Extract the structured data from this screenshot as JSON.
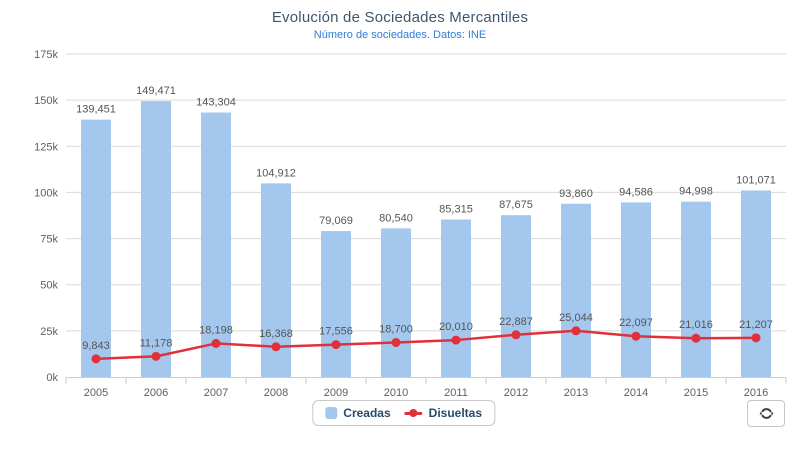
{
  "header": {
    "title": "Evolución de Sociedades Mercantiles",
    "subtitle": "Número de sociedades. Datos: INE"
  },
  "legend": {
    "items": [
      {
        "label": "Creadas",
        "type": "bar",
        "color": "#a4c8ed"
      },
      {
        "label": "Disueltas",
        "type": "line",
        "color": "#e0303a"
      }
    ]
  },
  "controls": {
    "refresh_icon": "refresh"
  },
  "colors": {
    "bar": "#a4c8ed",
    "line": "#e0303a",
    "grid": "#d9d9d9",
    "axis": "#c6ccd8",
    "axis_label": "#606060",
    "data_label": "#555555",
    "title": "#3e576f",
    "subtitle": "#2f7ed8"
  },
  "chart_data": {
    "type": "bar",
    "title": "Evolución de Sociedades Mercantiles",
    "subtitle": "Número de sociedades. Datos: INE",
    "categories": [
      "2005",
      "2006",
      "2007",
      "2008",
      "2009",
      "2010",
      "2011",
      "2012",
      "2013",
      "2014",
      "2015",
      "2016"
    ],
    "series": [
      {
        "name": "Creadas",
        "type": "bar",
        "color": "#a4c8ed",
        "values": [
          139451,
          149471,
          143304,
          104912,
          79069,
          80540,
          85315,
          87675,
          93860,
          94586,
          94998,
          101071
        ],
        "labels": [
          "139,451",
          "149,471",
          "143,304",
          "104,912",
          "79,069",
          "80,540",
          "85,315",
          "87,675",
          "93,860",
          "94,586",
          "94,998",
          "101,071"
        ]
      },
      {
        "name": "Disueltas",
        "type": "line",
        "color": "#e0303a",
        "values": [
          9843,
          11178,
          18198,
          16368,
          17556,
          18700,
          20010,
          22887,
          25044,
          22097,
          21016,
          21207
        ],
        "labels": [
          "9,843",
          "11,178",
          "18,198",
          "16,368",
          "17,556",
          "18,700",
          "20,010",
          "22,887",
          "25,044",
          "22,097",
          "21,016",
          "21,207"
        ]
      }
    ],
    "xlabel": "",
    "ylabel": "",
    "ylim": [
      0,
      175000
    ],
    "yticks": [
      "0k",
      "25k",
      "50k",
      "75k",
      "100k",
      "125k",
      "150k",
      "175k"
    ],
    "grid": true,
    "legend_position": "bottom"
  }
}
